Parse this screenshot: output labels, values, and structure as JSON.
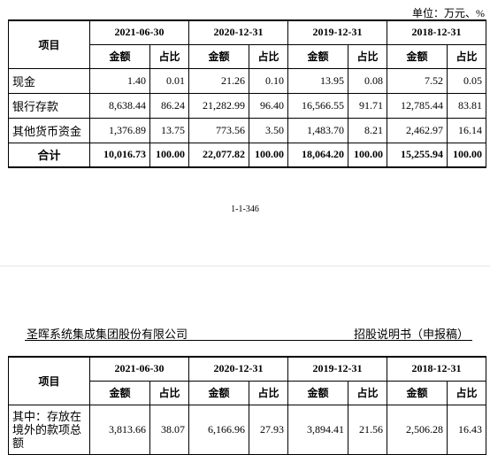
{
  "page1": {
    "unit_label": "单位：万元、%",
    "page_number": "1-1-346",
    "table": {
      "item_header": "项目",
      "periods": [
        "2021-06-30",
        "2020-12-31",
        "2019-12-31",
        "2018-12-31"
      ],
      "sub_headers": [
        "金额",
        "占比"
      ],
      "rows": [
        {
          "label": "现金",
          "values": [
            "1.40",
            "0.01",
            "21.26",
            "0.10",
            "13.95",
            "0.08",
            "7.52",
            "0.05"
          ]
        },
        {
          "label": "银行存款",
          "values": [
            "8,638.44",
            "86.24",
            "21,282.99",
            "96.40",
            "16,566.55",
            "91.71",
            "12,785.44",
            "83.81"
          ]
        },
        {
          "label": "其他货币资金",
          "values": [
            "1,376.89",
            "13.75",
            "773.56",
            "3.50",
            "1,483.70",
            "8.21",
            "2,462.97",
            "16.14"
          ]
        }
      ],
      "total": {
        "label": "合计",
        "values": [
          "10,016.73",
          "100.00",
          "22,077.82",
          "100.00",
          "18,064.20",
          "100.00",
          "15,255.94",
          "100.00"
        ]
      }
    }
  },
  "page2": {
    "company": "圣晖系统集成集团股份有限公司",
    "document_title": "招股说明书（申报稿）",
    "table": {
      "item_header": "项目",
      "periods": [
        "2021-06-30",
        "2020-12-31",
        "2019-12-31",
        "2018-12-31"
      ],
      "sub_headers": [
        "金额",
        "占比"
      ],
      "rows": [
        {
          "label": "其中：存放在境外的款项总额",
          "values": [
            "3,813.66",
            "38.07",
            "6,166.96",
            "27.93",
            "3,894.41",
            "21.56",
            "2,506.28",
            "16.43"
          ]
        }
      ]
    }
  }
}
